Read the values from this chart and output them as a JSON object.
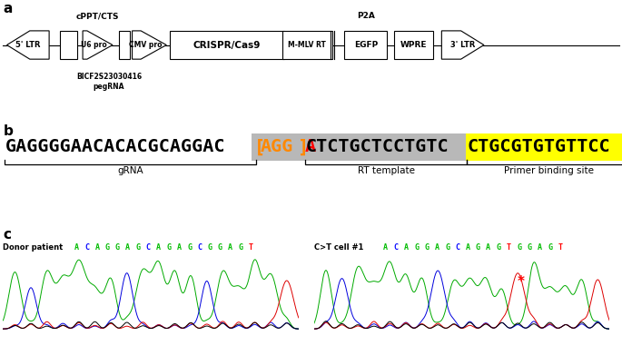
{
  "panel_a": {
    "label": "a",
    "cppt_label": "cPPT/CTS",
    "p2a_label": "P2A",
    "bicf_label": "BICF2S23030416\npegRNA"
  },
  "panel_b": {
    "label": "b",
    "grna_label": "gRNA",
    "rt_label": "RT template",
    "pbs_label": "Primer binding site"
  },
  "panel_c": {
    "label": "c",
    "donor_label": "Donor patient",
    "donor_seq": [
      "A",
      "C",
      "A",
      "G",
      "G",
      "A",
      "G",
      "C",
      "A",
      "G",
      "A",
      "G",
      "C",
      "G",
      "G",
      "A",
      "G",
      "T"
    ],
    "donor_colors": [
      "green",
      "blue",
      "green",
      "green",
      "green",
      "green",
      "green",
      "blue",
      "green",
      "green",
      "green",
      "green",
      "blue",
      "green",
      "green",
      "green",
      "green",
      "red"
    ],
    "cell_label": "C>T cell #1",
    "cell_seq": [
      "A",
      "C",
      "A",
      "G",
      "G",
      "A",
      "G",
      "C",
      "A",
      "G",
      "A",
      "G",
      "T",
      "G",
      "G",
      "A",
      "G",
      "T"
    ],
    "cell_colors": [
      "green",
      "blue",
      "green",
      "green",
      "green",
      "green",
      "green",
      "blue",
      "green",
      "green",
      "green",
      "green",
      "red",
      "green",
      "green",
      "green",
      "green",
      "red"
    ]
  },
  "bg_color": "#ffffff",
  "color_map": {
    "green": "#00bb00",
    "blue": "#0000ff",
    "red": "#ff0000",
    "black": "#000000"
  }
}
